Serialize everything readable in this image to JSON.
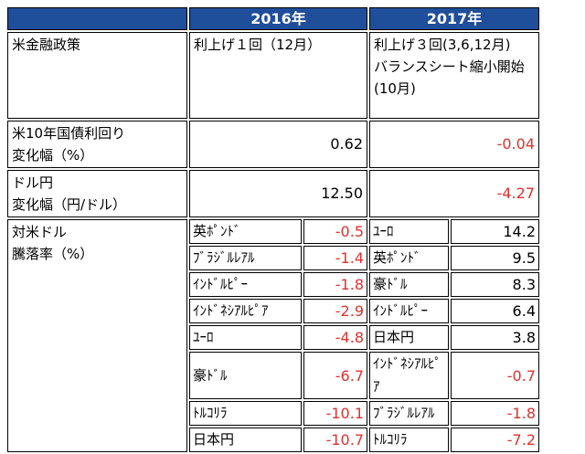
{
  "header": {
    "y2016": "2016年",
    "y2017": "2017年"
  },
  "rows": [
    {
      "label": "米金融政策",
      "y2016": "利上げ１回（12月）",
      "y2017": "利上げ３回(3,6,12月)\nバランスシート縮小開始\n(10月)"
    },
    {
      "label": "米10年国債利回り\n変化幅（%）",
      "y2016": "0.62",
      "y2017": "-0.04"
    },
    {
      "label": "ドル円\n変化幅（円/ドル）",
      "y2016": "12.50",
      "y2017": "-4.27"
    }
  ],
  "fx_table": {
    "label": "対米ドル\n騰落率（%）",
    "y2016": [
      {
        "currency": "英ﾎﾟﾝﾄﾞ",
        "change": "-0.5"
      },
      {
        "currency": "ﾌﾞﾗｼﾞﾙﾚｱﾙ",
        "change": "-1.4"
      },
      {
        "currency": "ｲﾝﾄﾞﾙﾋﾟｰ",
        "change": "-1.8"
      },
      {
        "currency": "ｲﾝﾄﾞﾈｼｱﾙﾋﾟｱ",
        "change": "-2.9"
      },
      {
        "currency": "ﾕｰﾛ",
        "change": "-4.8"
      },
      {
        "currency": "豪ﾄﾞﾙ",
        "change": "-6.7"
      },
      {
        "currency": "ﾄﾙｺﾘﾗ",
        "change": "-10.1"
      },
      {
        "currency": "日本円",
        "change": "-10.7"
      }
    ],
    "y2017": [
      {
        "currency": "ﾕｰﾛ",
        "change": "14.2"
      },
      {
        "currency": "英ﾎﾟﾝﾄﾞ",
        "change": "9.5"
      },
      {
        "currency": "豪ﾄﾞﾙ",
        "change": "8.3"
      },
      {
        "currency": "ｲﾝﾄﾞﾙﾋﾟｰ",
        "change": "6.4"
      },
      {
        "currency": "日本円",
        "change": "3.8"
      },
      {
        "currency": "ｲﾝﾄﾞﾈｼｱﾙﾋﾟｱ",
        "change": "-0.7"
      },
      {
        "currency": "ﾌﾞﾗｼﾞﾙﾚｱﾙ",
        "change": "-1.8"
      },
      {
        "currency": "ﾄﾙｺﾘﾗ",
        "change": "-7.2"
      }
    ]
  }
}
